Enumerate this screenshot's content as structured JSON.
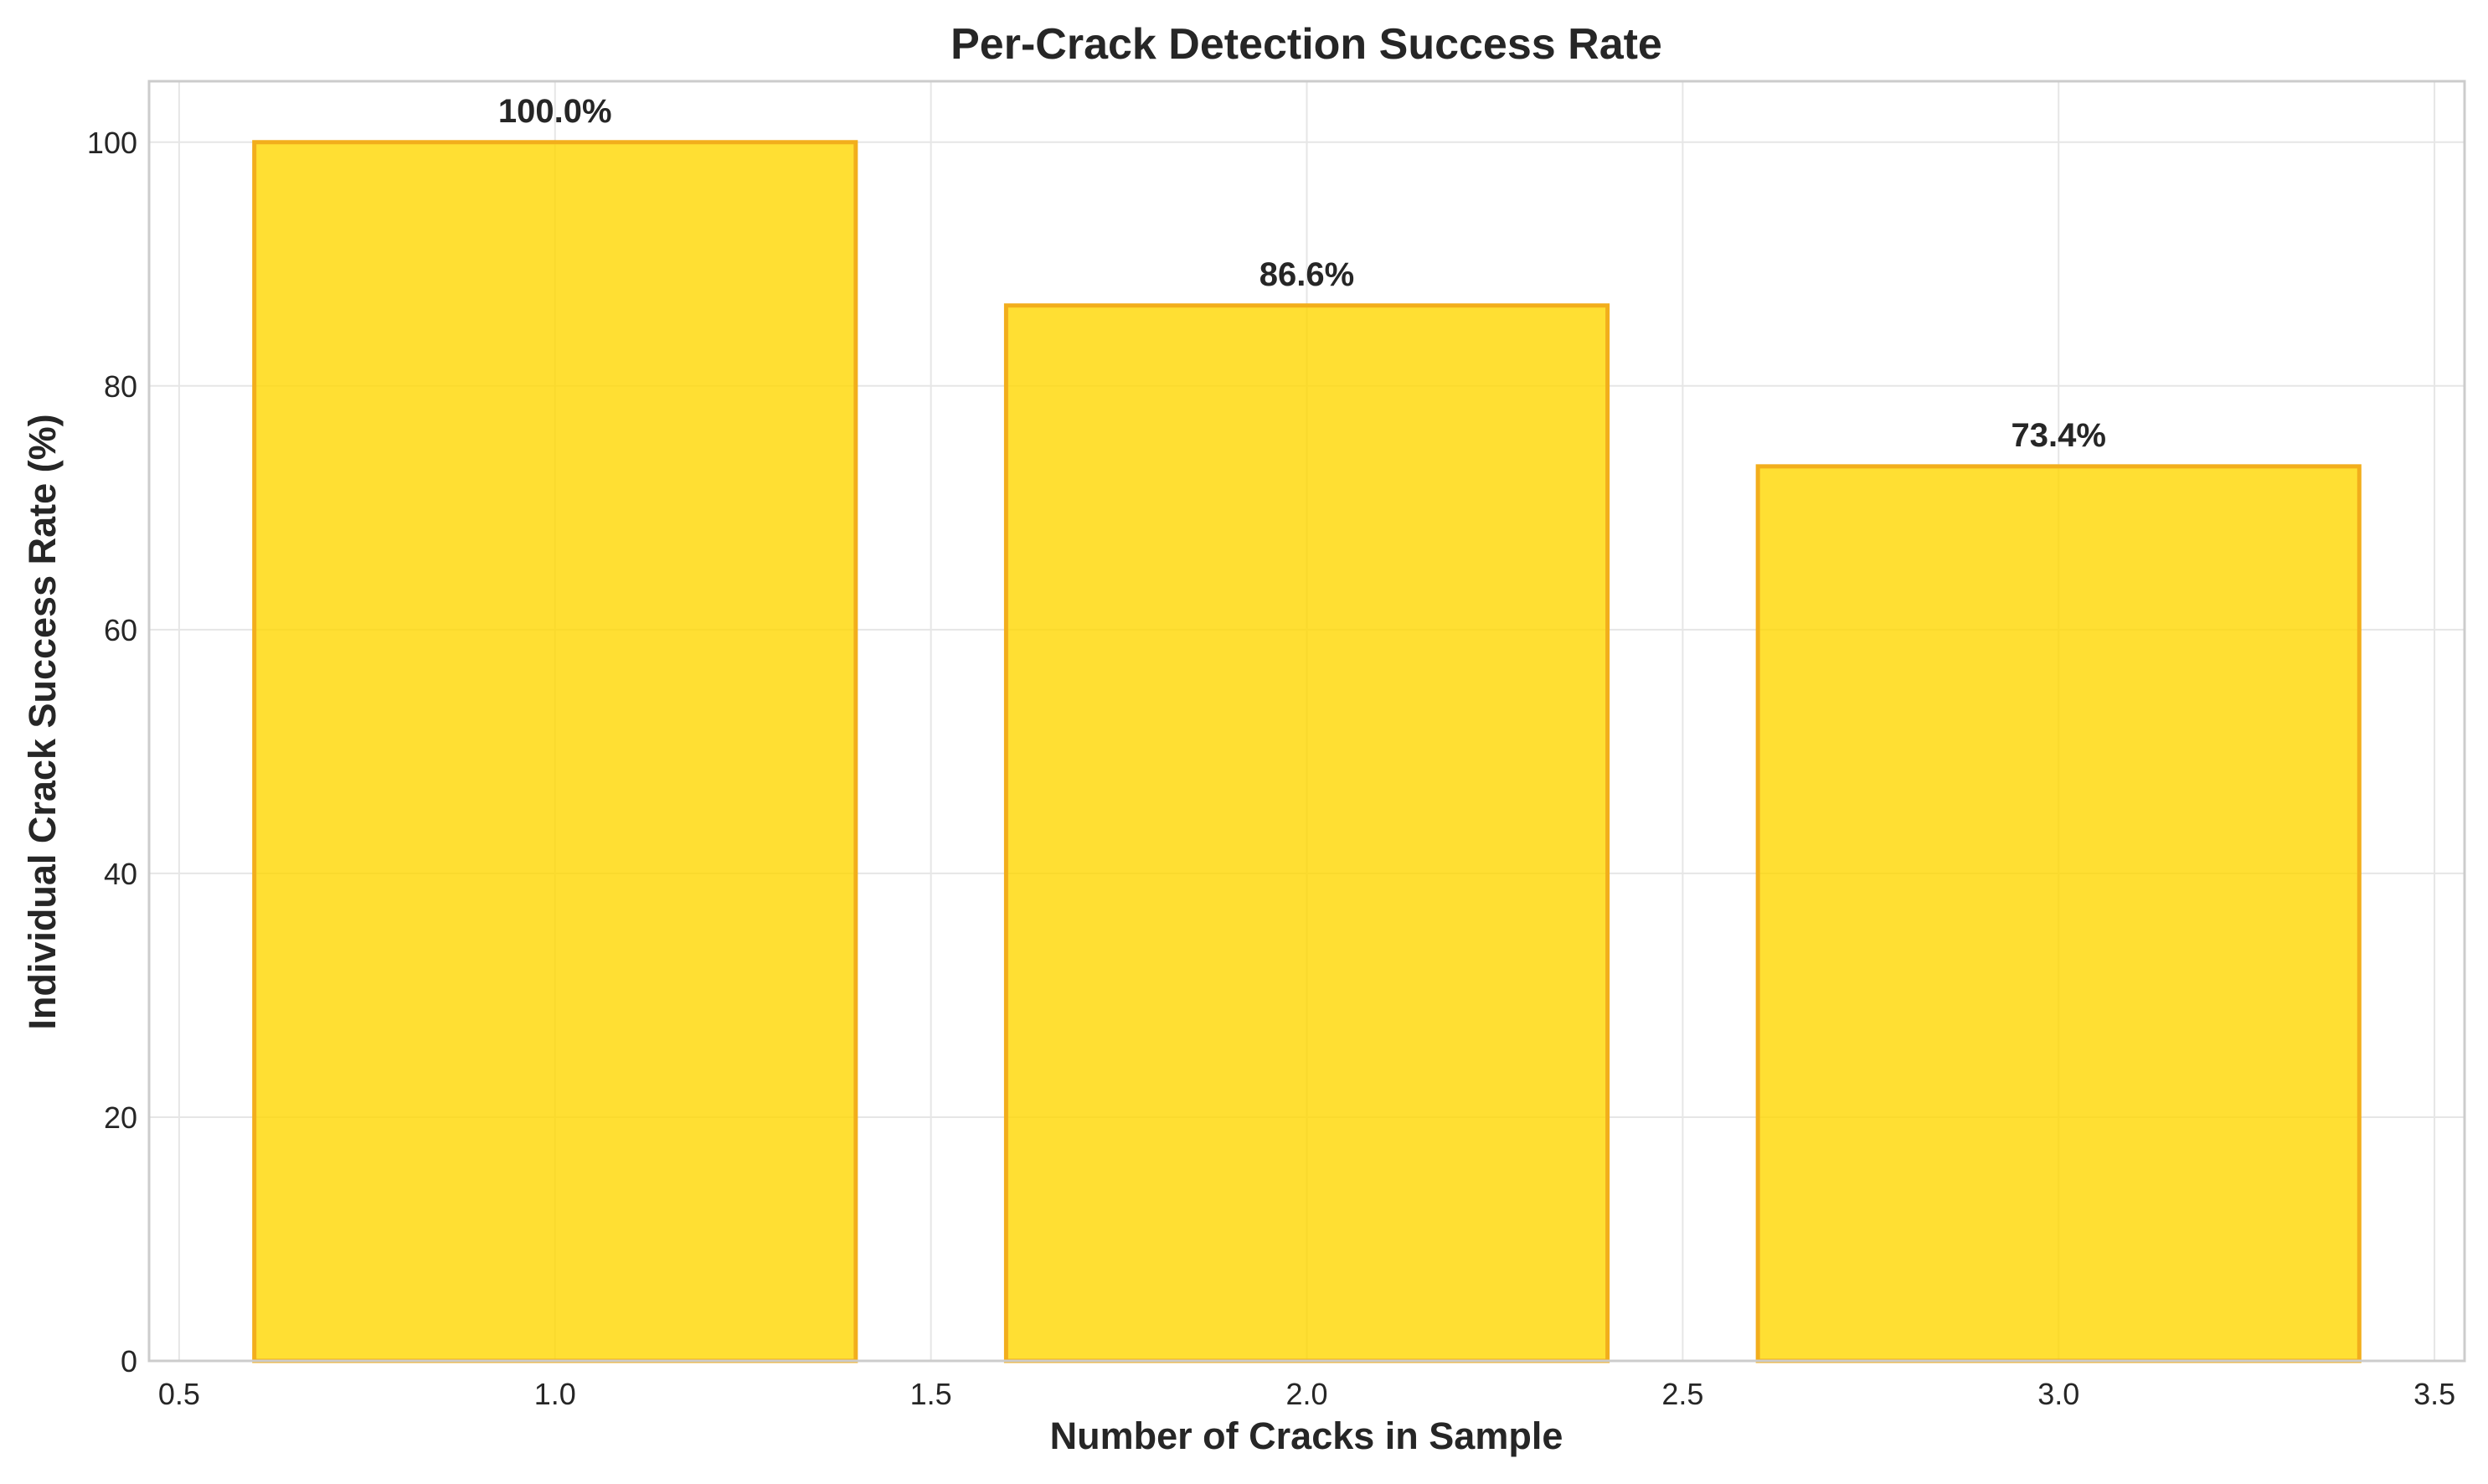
{
  "chart_data": {
    "type": "bar",
    "title": "Per-Crack Detection Success Rate",
    "xlabel": "Number of Cracks in Sample",
    "ylabel": "Individual Crack Success Rate (%)",
    "x": [
      1,
      2,
      3
    ],
    "values": [
      100.0,
      86.6,
      73.4
    ],
    "data_labels": [
      "100.0%",
      "86.6%",
      "73.4%"
    ],
    "bar_width": 0.8,
    "xlim": [
      0.46,
      3.54
    ],
    "ylim": [
      0,
      105
    ],
    "x_ticks": [
      0.5,
      1.0,
      1.5,
      2.0,
      2.5,
      3.0,
      3.5
    ],
    "x_tick_labels": [
      "0.5",
      "1.0",
      "1.5",
      "2.0",
      "2.5",
      "3.0",
      "3.5"
    ],
    "y_ticks": [
      0,
      20,
      40,
      60,
      80,
      100
    ],
    "y_tick_labels": [
      "0",
      "20",
      "40",
      "60",
      "80",
      "100"
    ],
    "grid": true,
    "colors": {
      "bar_fill": "#FFD700",
      "bar_edge": "#F2AE1C",
      "grid": "#e6e6e6",
      "frame": "#cccccc",
      "text": "#262626"
    }
  }
}
